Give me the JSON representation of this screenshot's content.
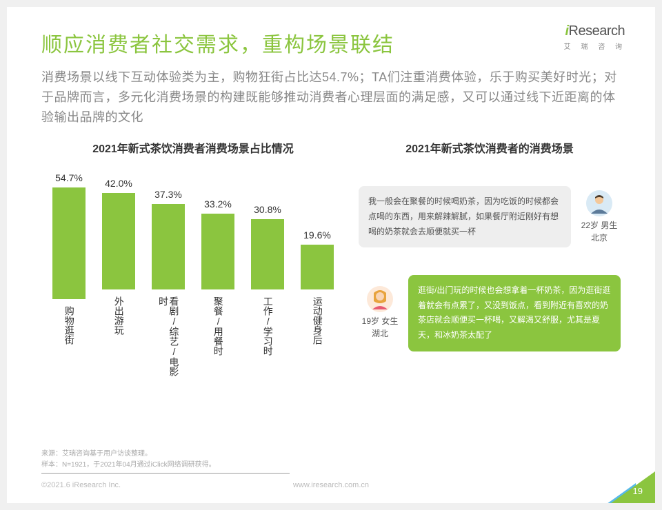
{
  "logo": {
    "main_i": "i",
    "main_rest": "Research",
    "sub": "艾 瑞 咨 询"
  },
  "title": "顺应消费者社交需求，重构场景联结",
  "subtitle": "消费场景以线下互动体验类为主，购物狂街占比达54.7%；TA们注重消费体验，乐于购买美好时光；对于品牌而言，多元化消费场景的构建既能够推动消费者心理层面的满足感，又可以通过线下近距离的体验输出品牌的文化",
  "chart": {
    "title": "2021年新式茶饮消费者消费场景占比情况",
    "type": "bar",
    "ylim_max": 60,
    "bar_color": "#8bc53f",
    "categories": [
      "购物逛街",
      "外出游玩",
      "看剧/综艺/电影时",
      "聚餐/用餐时",
      "工作/学习时",
      "运动健身后"
    ],
    "values": [
      54.7,
      42.0,
      37.3,
      33.2,
      30.8,
      19.6
    ],
    "value_labels": [
      "54.7%",
      "42.0%",
      "37.3%",
      "33.2%",
      "30.8%",
      "19.6%"
    ]
  },
  "right_title": "2021年新式茶饮消费者的消费场景",
  "quotes": [
    {
      "text": "我一般会在聚餐的时候喝奶茶，因为吃饭的时候都会点喝的东西，用来解辣解腻，如果餐厅附近刚好有想喝的奶茶就会去顺便就买一杯",
      "persona_l1": "22岁 男生",
      "persona_l2": "北京",
      "side": "right",
      "style": "grey"
    },
    {
      "text": "逛街/出门玩的时候也会想拿着一杯奶茶，因为逛街逛着就会有点累了，又没到饭点，看到附近有喜欢的奶茶店就会顺便买一杯喝，又解渴又舒服，尤其是夏天，和冰奶茶太配了",
      "persona_l1": "19岁 女生",
      "persona_l2": "湖北",
      "side": "left",
      "style": "green"
    }
  ],
  "footnote_l1": "来源：艾瑞咨询基于用户访谈整理。",
  "footnote_l2": "样本：N=1921，于2021年04月通过iClick网络调研获得。",
  "copyright": "©2021.6 iResearch Inc.",
  "url": "www.iresearch.com.cn",
  "page": "19"
}
